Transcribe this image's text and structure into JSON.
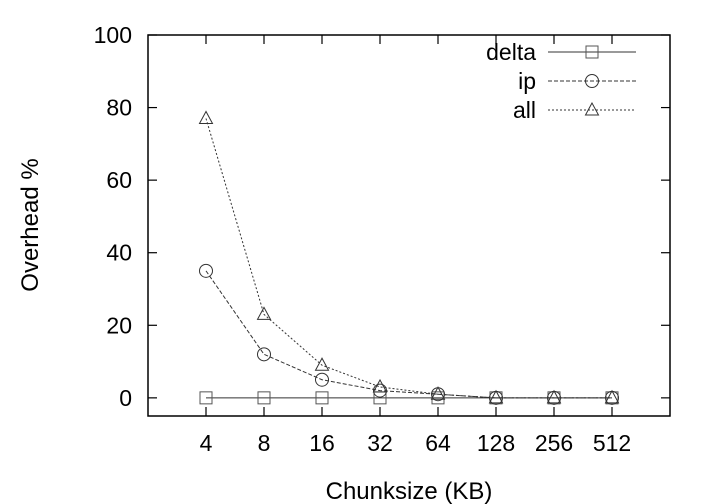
{
  "chart_data": {
    "type": "line",
    "title": "",
    "xlabel": "Chunksize (KB)",
    "ylabel": "Overhead %",
    "categories": [
      "4",
      "8",
      "16",
      "32",
      "64",
      "128",
      "256",
      "512"
    ],
    "ylim": [
      -5,
      100
    ],
    "yticks": [
      0,
      20,
      40,
      60,
      80,
      100
    ],
    "grid": false,
    "legend_position": "top-right",
    "series": [
      {
        "name": "delta",
        "marker": "square",
        "dash": "solid",
        "values": [
          0,
          0,
          0,
          0,
          0,
          0,
          0,
          0
        ]
      },
      {
        "name": "ip",
        "marker": "circle",
        "dash": "dashed",
        "values": [
          35,
          12,
          5,
          2,
          1,
          0,
          0,
          0
        ]
      },
      {
        "name": "all",
        "marker": "triangle",
        "dash": "dotted",
        "values": [
          77,
          23,
          9,
          3,
          1,
          0,
          0,
          0
        ]
      }
    ]
  }
}
